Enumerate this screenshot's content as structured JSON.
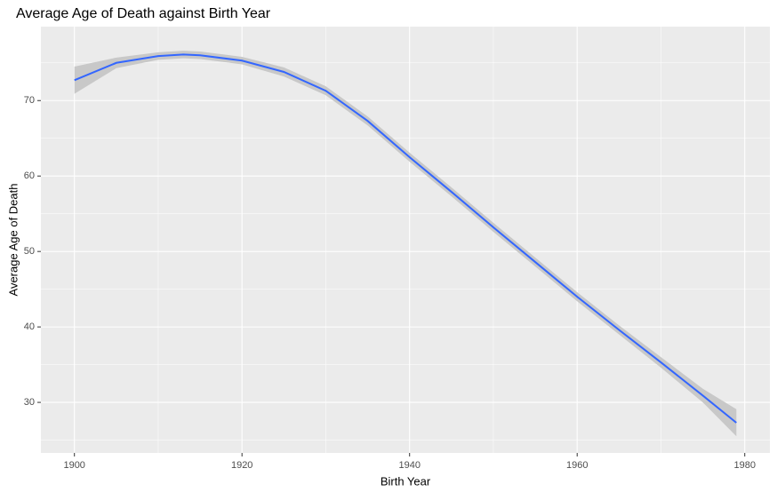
{
  "chart_data": {
    "type": "line",
    "title": "Average Age of Death against Birth Year",
    "x_label": "Birth Year",
    "y_label": "Average Age of Death",
    "x": [
      1900,
      1905,
      1910,
      1913,
      1915,
      1920,
      1925,
      1930,
      1935,
      1940,
      1945,
      1950,
      1955,
      1960,
      1965,
      1970,
      1975,
      1979
    ],
    "series": [
      {
        "color": "#3366ff",
        "band_color": "#c8c8c8",
        "values": [
          72.7,
          75.0,
          75.9,
          76.1,
          76.0,
          75.3,
          73.8,
          71.3,
          67.3,
          62.5,
          57.9,
          53.2,
          48.6,
          44.0,
          39.6,
          35.3,
          30.9,
          27.3
        ],
        "lower": [
          70.9,
          74.3,
          75.4,
          75.6,
          75.5,
          74.8,
          73.2,
          70.7,
          66.7,
          61.9,
          57.3,
          52.6,
          48.0,
          43.4,
          39.0,
          34.6,
          30.0,
          25.5
        ],
        "upper": [
          74.5,
          75.7,
          76.4,
          76.6,
          76.5,
          75.8,
          74.4,
          71.9,
          67.9,
          63.1,
          58.5,
          53.8,
          49.2,
          44.6,
          40.2,
          36.0,
          31.8,
          29.1
        ]
      }
    ],
    "xlim": [
      1896,
      1983
    ],
    "ylim": [
      23.3,
      79.8
    ],
    "xticks": [
      1900,
      1920,
      1940,
      1960,
      1980
    ],
    "yticks": [
      30,
      40,
      50,
      60,
      70
    ],
    "grid": true,
    "minor_grid": true
  }
}
